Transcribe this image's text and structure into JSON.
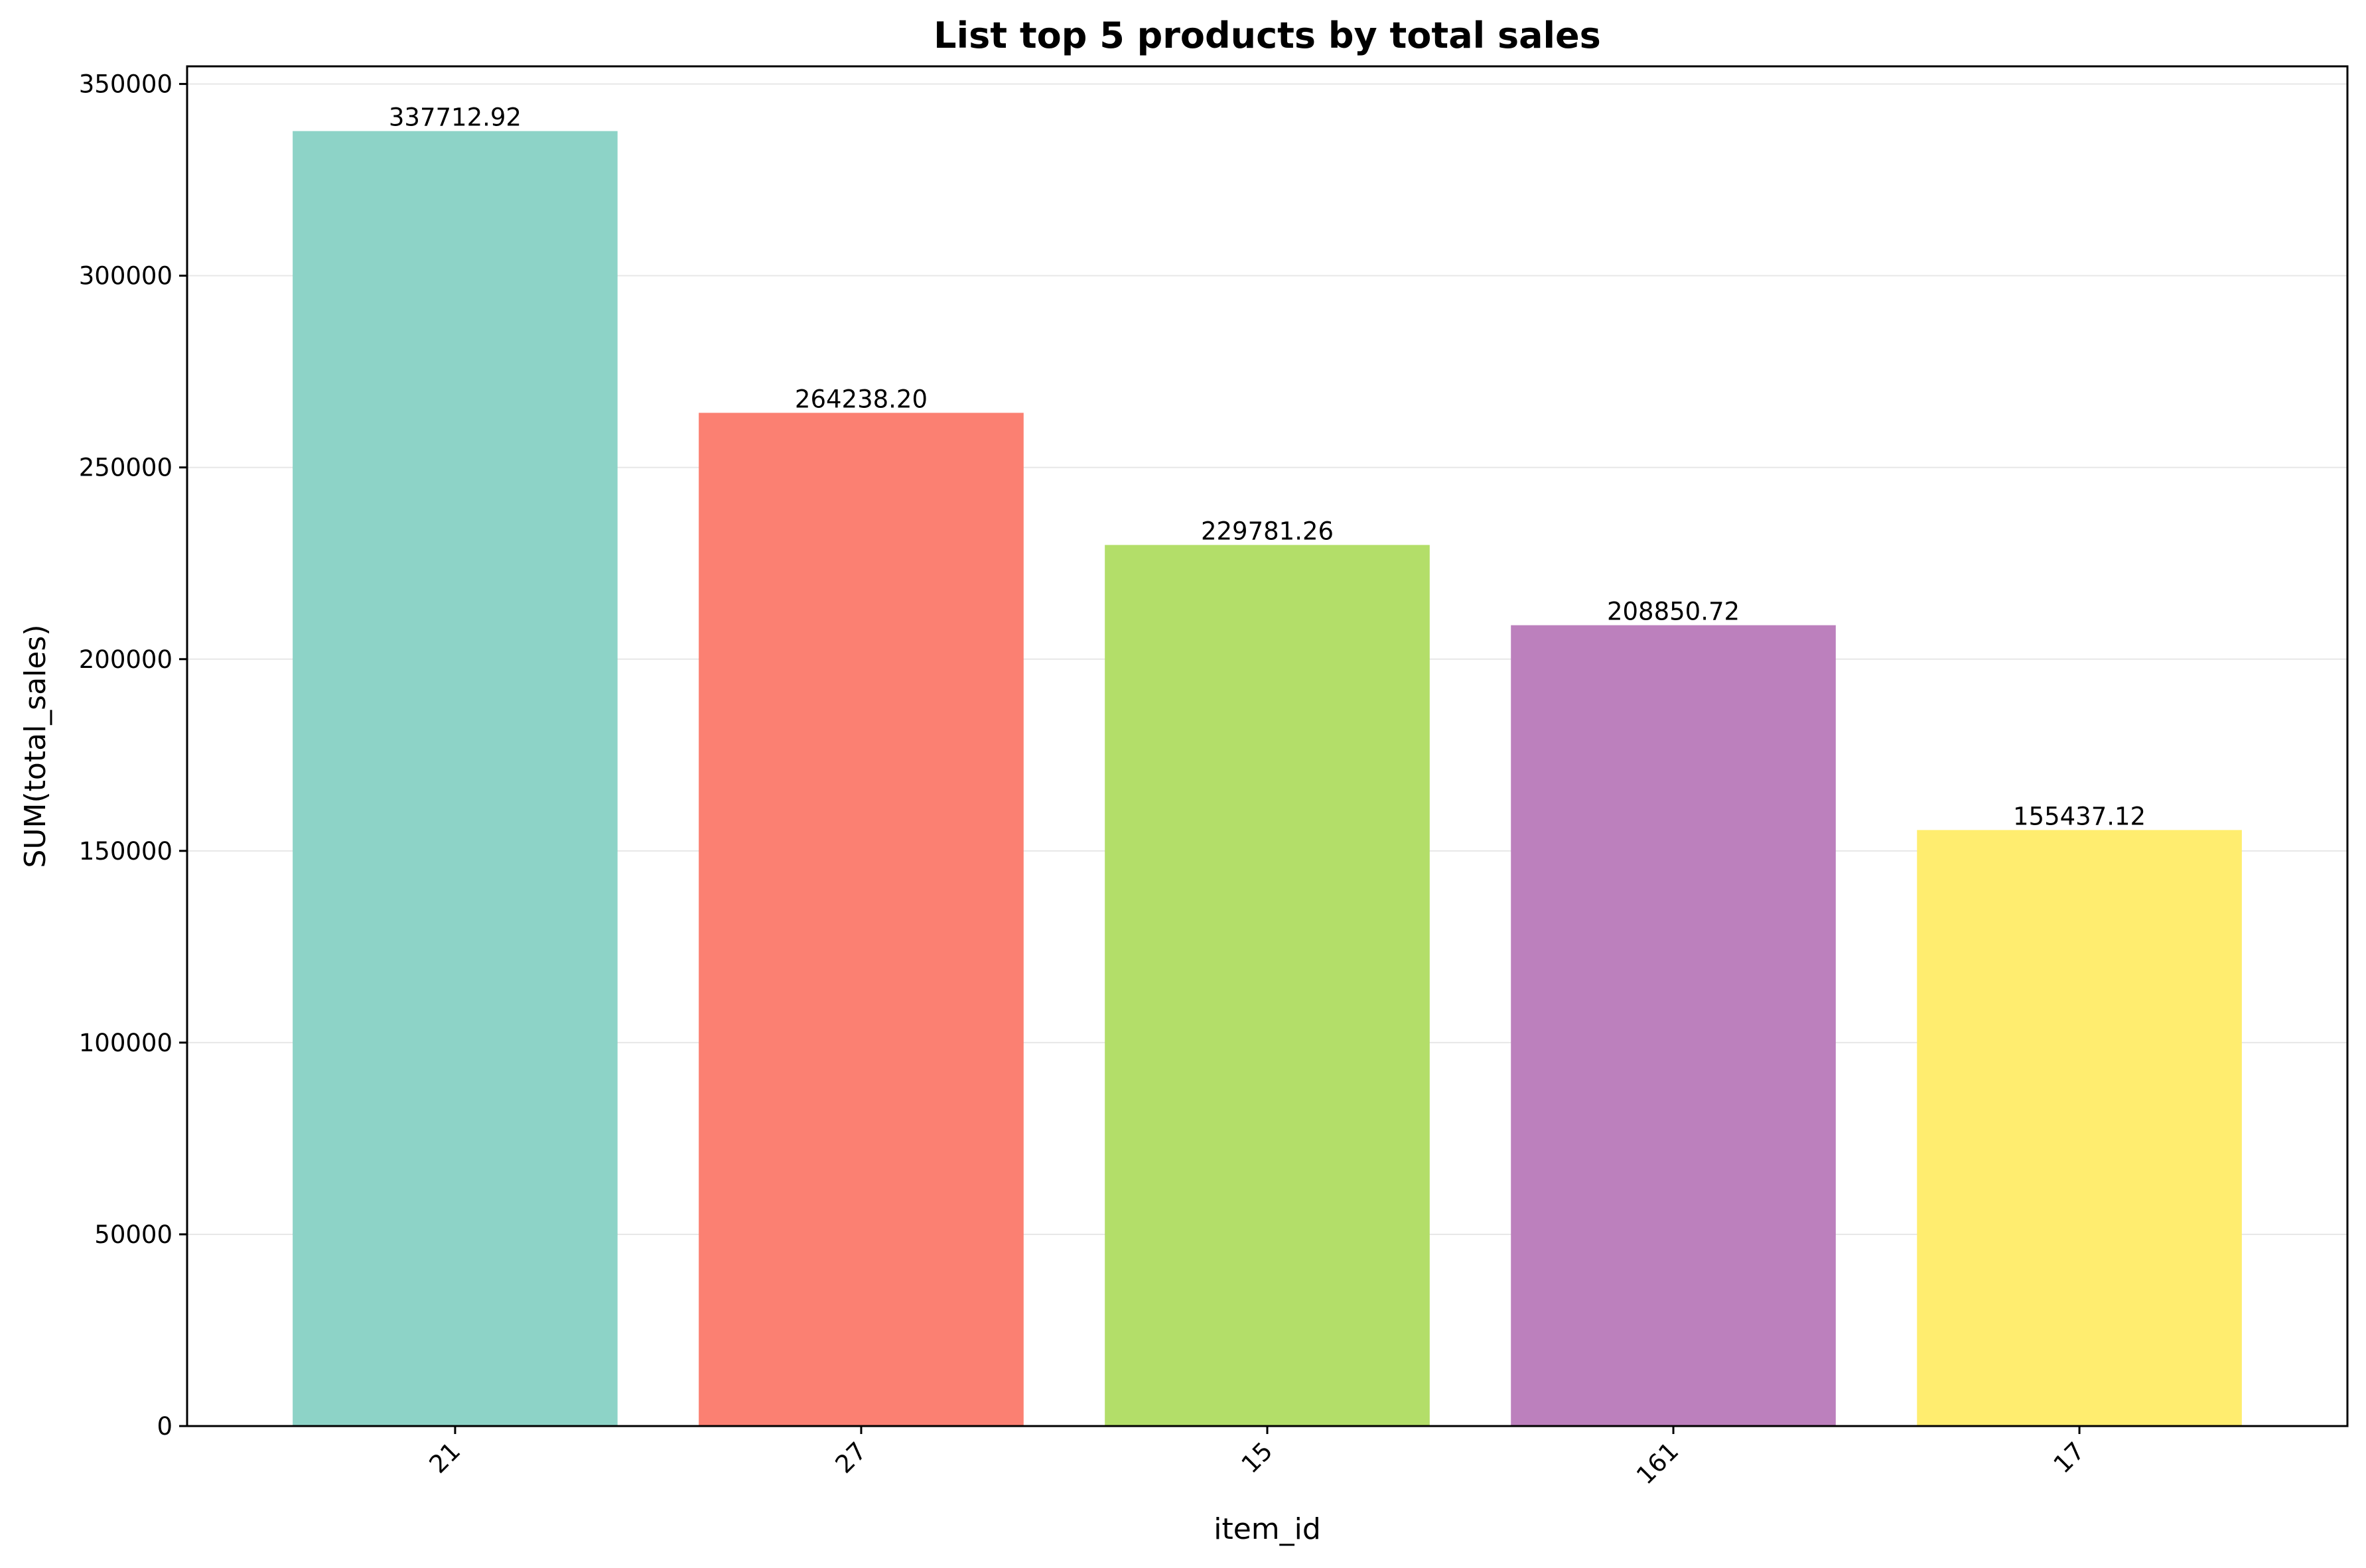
{
  "chart_data": {
    "type": "bar",
    "title": "List top 5 products by total sales",
    "xlabel": "item_id",
    "ylabel": "SUM(total_sales)",
    "categories": [
      "21",
      "27",
      "15",
      "161",
      "17"
    ],
    "values": [
      337712.92,
      264238.2,
      229781.26,
      208850.72,
      155437.12
    ],
    "value_labels": [
      "337712.92",
      "264238.20",
      "229781.26",
      "208850.72",
      "155437.12"
    ],
    "colors": [
      "#8dd3c7",
      "#fb8072",
      "#b3de69",
      "#bc80bd",
      "#ffed6f"
    ],
    "ylim": [
      0,
      354600
    ],
    "yticks": [
      0,
      50000,
      100000,
      150000,
      200000,
      250000,
      300000,
      350000
    ],
    "ytick_labels": [
      "0",
      "50000",
      "100000",
      "150000",
      "200000",
      "250000",
      "300000",
      "350000"
    ],
    "grid": "y",
    "legend": "none"
  }
}
